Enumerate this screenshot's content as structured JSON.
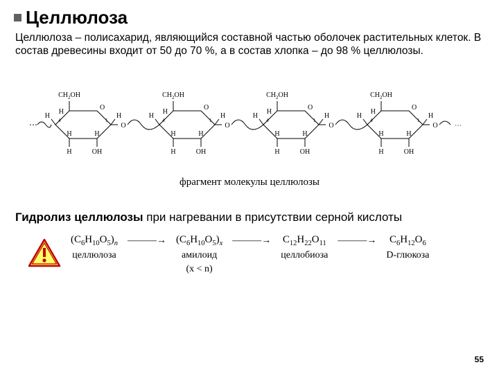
{
  "title": "Целлюлоза",
  "body": "Целлюлоза – полисахарид, являющийся составной частью оболочек растительных клеток. В состав древесины входит от 50 до 70 %, а в состав хлопка – до 98 % целлюлозы.",
  "diagram": {
    "caption": "фрагмент молекулы целлюлозы",
    "unit_count": 4,
    "labels": {
      "ch2oh": "CH",
      "ch2oh_sub": "2",
      "ch2oh_tail": "OH",
      "H": "H",
      "OH": "OH",
      "O": "O",
      "c1": "1",
      "c4": "4"
    }
  },
  "subheading_bold": "Гидролиз целлюлозы",
  "subheading_rest": " при нагревании в присутствии серной кислоты",
  "hydrolysis": {
    "steps": [
      {
        "formula_html": "(C<sub>6</sub>H<sub>10</sub>O<sub>5</sub>)<sub><i>n</i></sub>",
        "label": "целлюлоза",
        "extra": ""
      },
      {
        "formula_html": "(C<sub>6</sub>H<sub>10</sub>O<sub>5</sub>)<sub><i>x</i></sub>",
        "label": "амилоид",
        "extra": "(x < n)"
      },
      {
        "formula_html": "C<sub>12</sub>H<sub>22</sub>O<sub>11</sub>",
        "label": "целлобиоза",
        "extra": ""
      },
      {
        "formula_html": "C<sub>6</sub>H<sub>12</sub>O<sub>6</sub>",
        "label": "D-глюкоза",
        "extra": ""
      }
    ],
    "arrow": "———→"
  },
  "page": "55",
  "colors": {
    "bullet": "#606060",
    "text": "#000000",
    "warn_border": "#c00000",
    "warn_fill": "#ffff66",
    "warn_excl": "#c00000",
    "background": "#ffffff"
  }
}
